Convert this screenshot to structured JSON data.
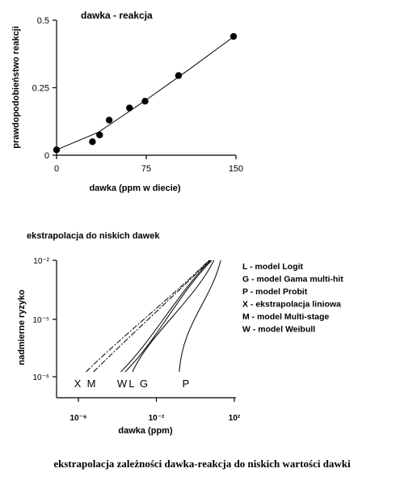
{
  "caption": "ekstrapolacja zależności dawka-reakcja do niskich wartości dawki",
  "chart_data": [
    {
      "type": "scatter",
      "title": "dawka - reakcja",
      "xlabel": "dawka (ppm w diecie)",
      "ylabel": "prawdopodobieństwo reakcji",
      "xlim": [
        0,
        150
      ],
      "ylim": [
        0,
        0.5
      ],
      "x_ticks": [
        0,
        75,
        150
      ],
      "x_tick_labels": [
        "0",
        "75",
        "150"
      ],
      "y_ticks": [
        0,
        0.25,
        0.5
      ],
      "y_tick_labels": [
        "0",
        "0.25",
        "0.5"
      ],
      "grid": false,
      "points": [
        {
          "x": 0,
          "y": 0.02
        },
        {
          "x": 30,
          "y": 0.05
        },
        {
          "x": 36,
          "y": 0.075
        },
        {
          "x": 44,
          "y": 0.13
        },
        {
          "x": 61,
          "y": 0.175
        },
        {
          "x": 74,
          "y": 0.2
        },
        {
          "x": 102,
          "y": 0.295
        },
        {
          "x": 148,
          "y": 0.44
        }
      ],
      "fit_line": [
        {
          "x": 0,
          "y": 0.02
        },
        {
          "x": 35,
          "y": 0.085
        },
        {
          "x": 75,
          "y": 0.205
        },
        {
          "x": 110,
          "y": 0.315
        },
        {
          "x": 150,
          "y": 0.445
        }
      ]
    },
    {
      "type": "line",
      "title": "ekstrapolacja do niskich dawek",
      "xlabel": "dawka (ppm)",
      "ylabel": "nadmierne ryzyko",
      "x_scale": "log",
      "y_scale": "log",
      "x_ticks": [
        1e-06,
        0.01,
        100
      ],
      "x_tick_labels": [
        "10⁻⁶",
        "10⁻²",
        "10²"
      ],
      "y_ticks": [
        1e-06,
        1e-05,
        0.01
      ],
      "y_tick_labels": [
        "10⁻⁶",
        "10⁻⁵",
        "10⁻²"
      ],
      "grid": false,
      "legend_position": "right",
      "legend": [
        "L - model Logit",
        "G - model Gama multi-hit",
        "P - model Probit",
        "X - ekstrapolacja liniowa",
        "M - model Multi-stage",
        "W - model Weibull"
      ],
      "curve_labels": [
        "X",
        "M",
        "W",
        "L",
        "G",
        "P"
      ],
      "curves": [
        {
          "name": "X",
          "dashed": true,
          "start_x": 2.5e-06,
          "end_x": 5
        },
        {
          "name": "M",
          "dashed": true,
          "start_x": 6e-06,
          "end_x": 5.5
        },
        {
          "name": "W",
          "dashed": false,
          "start_x": 0.00015,
          "end_x": 6
        },
        {
          "name": "L",
          "dashed": false,
          "start_x": 0.00025,
          "end_x": 7
        },
        {
          "name": "G",
          "dashed": false,
          "start_x": 0.0006,
          "end_x": 9
        },
        {
          "name": "P",
          "dashed": false,
          "start_x": 0.15,
          "end_x": 20
        }
      ]
    }
  ]
}
